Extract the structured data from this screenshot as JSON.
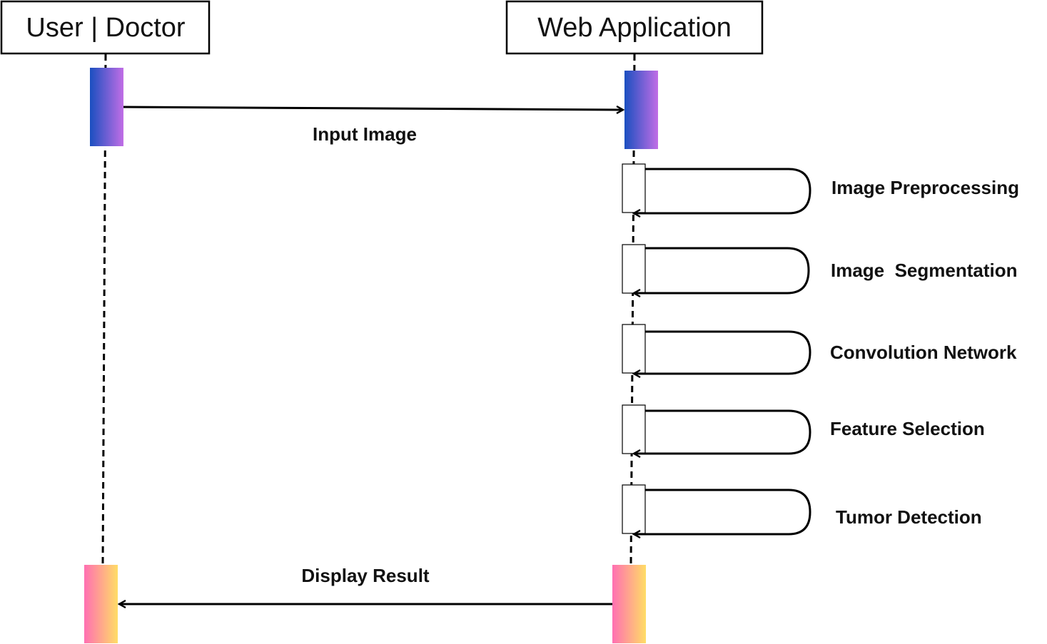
{
  "actors": [
    {
      "id": "user",
      "label": "User | Doctor"
    },
    {
      "id": "app",
      "label": "Web Application"
    }
  ],
  "messages": [
    {
      "from": "user",
      "to": "app",
      "label": "Input Image"
    },
    {
      "from": "app",
      "to": "user",
      "label": "Display Result"
    }
  ],
  "self_calls": [
    {
      "label": "Image Preprocessing"
    },
    {
      "label": "Image  Segmentation"
    },
    {
      "label": "Convolution Network"
    },
    {
      "label": "Feature Selection"
    },
    {
      "label": "Tumor Detection"
    }
  ],
  "colors": {
    "line": "#000000",
    "activation_top_start": "#1a4fc0",
    "activation_top_end": "#c16ee6",
    "activation_bottom_start": "#ff6fb2",
    "activation_bottom_end": "#ffdd66",
    "selfcall_box_fill": "#ffffff"
  }
}
